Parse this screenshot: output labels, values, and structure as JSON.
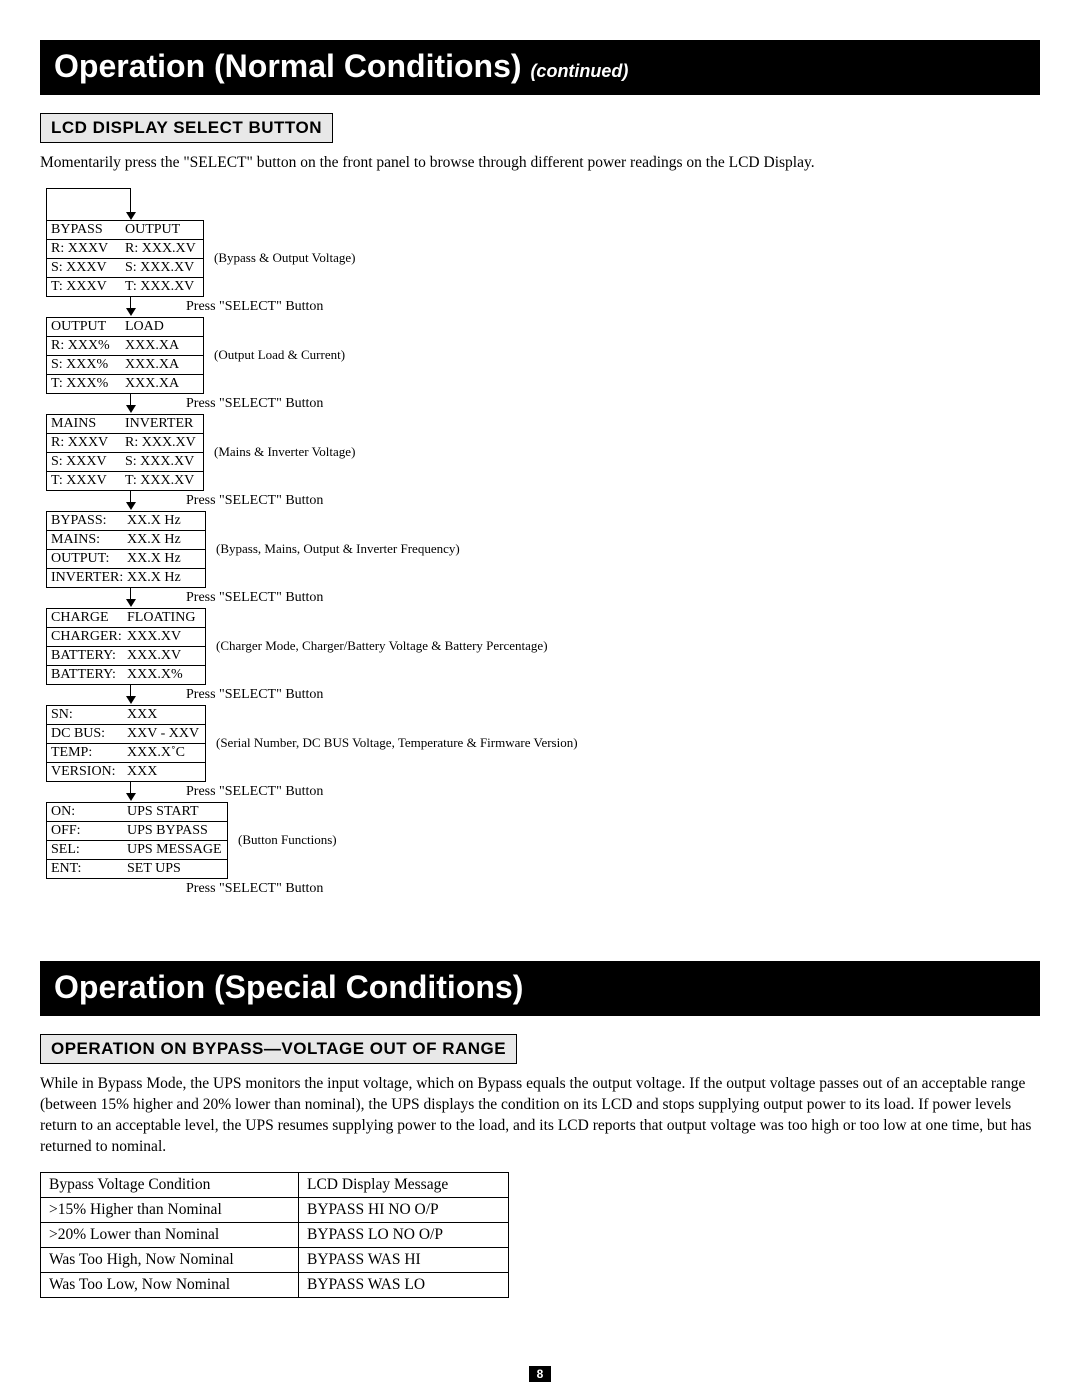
{
  "banner1": {
    "title": "Operation (Normal Conditions)",
    "continued": "(continued)"
  },
  "sub1": "LCD DISPLAY SELECT BUTTON",
  "intro1": "Momentarily press the \"SELECT\" button on the front panel to browse through different power readings on the LCD Display.",
  "press_label": "Press \"SELECT\" Button",
  "screens": [
    {
      "caption": "(Bypass & Output Voltage)",
      "rows": [
        [
          "BYPASS",
          "OUTPUT"
        ],
        [
          "R: XXXV",
          "R: XXX.XV"
        ],
        [
          "S: XXXV",
          "S: XXX.XV"
        ],
        [
          "T: XXXV",
          "T: XXX.XV"
        ]
      ]
    },
    {
      "caption": "(Output Load & Current)",
      "rows": [
        [
          "OUTPUT",
          "LOAD"
        ],
        [
          "R: XXX%",
          "XXX.XA"
        ],
        [
          "S: XXX%",
          "XXX.XA"
        ],
        [
          "T: XXX%",
          "XXX.XA"
        ]
      ]
    },
    {
      "caption": "(Mains & Inverter Voltage)",
      "rows": [
        [
          "MAINS",
          "INVERTER"
        ],
        [
          "R: XXXV",
          "R: XXX.XV"
        ],
        [
          "S: XXXV",
          "S: XXX.XV"
        ],
        [
          "T: XXXV",
          "T: XXX.XV"
        ]
      ]
    },
    {
      "caption": "(Bypass, Mains, Output & Inverter Frequency)",
      "rows": [
        [
          "BYPASS:",
          "XX.X Hz"
        ],
        [
          "MAINS:",
          "XX.X Hz"
        ],
        [
          "OUTPUT:",
          "XX.X Hz"
        ],
        [
          "INVERTER:",
          "XX.X Hz"
        ]
      ]
    },
    {
      "caption": "(Charger Mode, Charger/Battery Voltage & Battery Percentage)",
      "rows": [
        [
          "CHARGE",
          "FLOATING"
        ],
        [
          "CHARGER:",
          "XXX.XV"
        ],
        [
          "BATTERY:",
          "XXX.XV"
        ],
        [
          "BATTERY:",
          "XXX.X%"
        ]
      ]
    },
    {
      "caption": "(Serial Number, DC BUS Voltage, Temperature & Firmware Version)",
      "rows": [
        [
          "SN:",
          "XXX"
        ],
        [
          "DC BUS:",
          "XXV - XXV"
        ],
        [
          "TEMP:",
          "XXX.X˚C"
        ],
        [
          "VERSION:",
          "XXX"
        ]
      ]
    },
    {
      "caption": "(Button Functions)",
      "rows": [
        [
          "ON:",
          "UPS START"
        ],
        [
          "OFF:",
          "UPS BYPASS"
        ],
        [
          "SEL:",
          "UPS MESSAGE"
        ],
        [
          "ENT:",
          "SET UPS"
        ]
      ]
    }
  ],
  "banner2": {
    "title": "Operation (Special Conditions)"
  },
  "sub2": "OPERATION ON BYPASS—VOLTAGE OUT OF RANGE",
  "intro2": "While in Bypass Mode, the UPS monitors the input voltage, which on Bypass equals the output voltage. If the output voltage passes out of an acceptable range (between 15% higher and 20% lower than nominal), the UPS displays the condition on its LCD and stops supplying output power to its load. If power levels return to an acceptable level, the UPS resumes supplying power to the load, and its LCD reports that output voltage was too high or too low at one time, but has returned to nominal.",
  "bypass_table": {
    "header": [
      "Bypass Voltage Condition",
      "LCD Display Message"
    ],
    "rows": [
      [
        ">15% Higher than Nominal",
        "BYPASS HI NO O/P"
      ],
      [
        ">20% Lower than Nominal",
        "BYPASS LO NO O/P"
      ],
      [
        "Was Too High, Now Nominal",
        "BYPASS WAS HI"
      ],
      [
        "Was Too Low, Now Nominal",
        "BYPASS WAS LO"
      ]
    ]
  },
  "page_number": "8"
}
